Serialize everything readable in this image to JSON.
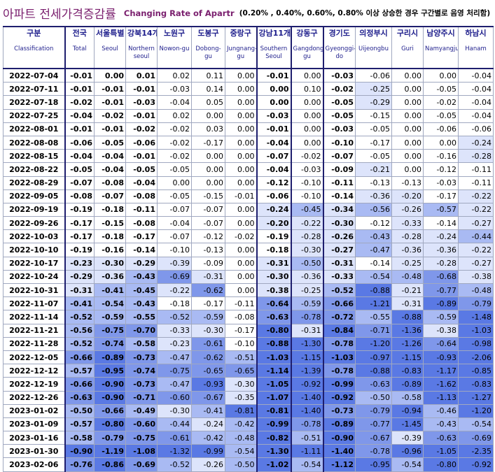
{
  "title": {
    "korean": "아파트 전세가격증감률",
    "english": "Changing Rate of Apartr",
    "note": "(0.20% , 0.40%, 0.60%, 0.80% 이상 상승한 경우 구간별로 음영 처리함)"
  },
  "columns": [
    {
      "k": "구분",
      "e": "Classification"
    },
    {
      "k": "전국",
      "e": "Total"
    },
    {
      "k": "서울특별",
      "e": "Seoul"
    },
    {
      "k": "강북14개",
      "e": "Northern seoul"
    },
    {
      "k": "노원구",
      "e": "Nowon-gu"
    },
    {
      "k": "도봉구",
      "e": "Dobong-gu"
    },
    {
      "k": "중랑구",
      "e": "Jungnang-gu"
    },
    {
      "k": "강남11개",
      "e": "Southern Seoul"
    },
    {
      "k": "강동구",
      "e": "Gangdong-gu"
    },
    {
      "k": "경기도",
      "e": "Gyeonggi-do"
    },
    {
      "k": "의정부시",
      "e": "Uijeongbu"
    },
    {
      "k": "구리시",
      "e": "Guri"
    },
    {
      "k": "남양주시",
      "e": "Namyangju"
    },
    {
      "k": "하남시",
      "e": "Hanam"
    }
  ],
  "shade_colors": {
    "level0": "#ffffff",
    "level1": "#dde4fb",
    "level2": "#a9baf3",
    "level3": "#7f97ea",
    "level4": "#5a79e4"
  },
  "highlight_color": "#e01818",
  "highlight_cell": {
    "row": 30,
    "col": 12
  },
  "rows": [
    [
      "2022-07-04",
      "-0.01",
      "0.00",
      "0.01",
      "0.02",
      "0.11",
      "0.00",
      "-0.01",
      "0.00",
      "-0.03",
      "-0.06",
      "0.00",
      "0.00",
      "-0.04"
    ],
    [
      "2022-07-11",
      "-0.01",
      "-0.01",
      "-0.01",
      "-0.03",
      "0.14",
      "0.00",
      "0.00",
      "0.10",
      "-0.02",
      "-0.25",
      "0.00",
      "-0.05",
      "-0.04"
    ],
    [
      "2022-07-18",
      "-0.02",
      "-0.01",
      "-0.03",
      "-0.04",
      "0.05",
      "0.00",
      "0.00",
      "0.00",
      "-0.05",
      "-0.29",
      "0.00",
      "-0.02",
      "-0.04"
    ],
    [
      "2022-07-25",
      "-0.04",
      "-0.02",
      "-0.01",
      "0.02",
      "0.00",
      "0.00",
      "-0.03",
      "0.00",
      "-0.05",
      "-0.15",
      "0.00",
      "-0.05",
      "-0.04"
    ],
    [
      "2022-08-01",
      "-0.01",
      "-0.01",
      "-0.02",
      "-0.02",
      "0.03",
      "0.00",
      "-0.01",
      "0.00",
      "-0.03",
      "-0.05",
      "0.00",
      "-0.06",
      "-0.06"
    ],
    [
      "2022-08-08",
      "-0.06",
      "-0.05",
      "-0.06",
      "-0.02",
      "-0.17",
      "0.00",
      "-0.04",
      "0.00",
      "-0.10",
      "-0.17",
      "0.00",
      "0.00",
      "-0.24"
    ],
    [
      "2022-08-15",
      "-0.04",
      "-0.04",
      "-0.01",
      "-0.02",
      "0.00",
      "0.00",
      "-0.07",
      "-0.02",
      "-0.07",
      "-0.05",
      "0.00",
      "-0.16",
      "-0.28"
    ],
    [
      "2022-08-22",
      "-0.05",
      "-0.04",
      "-0.05",
      "-0.05",
      "0.00",
      "0.00",
      "-0.04",
      "-0.03",
      "-0.09",
      "-0.21",
      "0.00",
      "-0.12",
      "-0.11"
    ],
    [
      "2022-08-29",
      "-0.07",
      "-0.08",
      "-0.04",
      "0.00",
      "0.00",
      "0.00",
      "-0.12",
      "-0.10",
      "-0.11",
      "-0.13",
      "-0.13",
      "-0.03",
      "-0.11"
    ],
    [
      "2022-09-05",
      "-0.08",
      "-0.07",
      "-0.08",
      "-0.05",
      "-0.15",
      "-0.01",
      "-0.06",
      "-0.10",
      "-0.14",
      "-0.36",
      "-0.20",
      "-0.17",
      "-0.22"
    ],
    [
      "2022-09-19",
      "-0.19",
      "-0.18",
      "-0.11",
      "-0.07",
      "-0.07",
      "0.00",
      "-0.24",
      "-0.45",
      "-0.34",
      "-0.56",
      "-0.26",
      "-0.57",
      "-0.22"
    ],
    [
      "2022-09-26",
      "-0.17",
      "-0.15",
      "-0.08",
      "-0.04",
      "-0.07",
      "0.00",
      "-0.20",
      "-0.22",
      "-0.30",
      "-0.12",
      "-0.33",
      "-0.14",
      "-0.27"
    ],
    [
      "2022-10-03",
      "-0.17",
      "-0.18",
      "-0.17",
      "-0.07",
      "-0.12",
      "-0.02",
      "-0.19",
      "-0.28",
      "-0.26",
      "-0.43",
      "-0.28",
      "-0.24",
      "-0.44"
    ],
    [
      "2022-10-10",
      "-0.19",
      "-0.16",
      "-0.14",
      "-0.10",
      "-0.13",
      "0.00",
      "-0.18",
      "-0.30",
      "-0.27",
      "-0.47",
      "-0.36",
      "-0.36",
      "-0.22"
    ],
    [
      "2022-10-17",
      "-0.23",
      "-0.30",
      "-0.29",
      "-0.39",
      "-0.09",
      "0.00",
      "-0.31",
      "-0.50",
      "-0.31",
      "-0.14",
      "-0.25",
      "-0.28",
      "-0.27"
    ],
    [
      "2022-10-24",
      "-0.29",
      "-0.36",
      "-0.43",
      "-0.69",
      "-0.31",
      "0.00",
      "-0.30",
      "-0.36",
      "-0.33",
      "-0.54",
      "-0.48",
      "-0.68",
      "-0.38"
    ],
    [
      "2022-10-31",
      "-0.31",
      "-0.41",
      "-0.45",
      "-0.22",
      "-0.62",
      "0.00",
      "-0.38",
      "-0.25",
      "-0.52",
      "-0.88",
      "-0.21",
      "-0.77",
      "-0.48"
    ],
    [
      "2022-11-07",
      "-0.41",
      "-0.54",
      "-0.43",
      "-0.18",
      "-0.17",
      "-0.11",
      "-0.64",
      "-0.59",
      "-0.66",
      "-1.21",
      "-0.31",
      "-0.89",
      "-0.79"
    ],
    [
      "2022-11-14",
      "-0.52",
      "-0.59",
      "-0.55",
      "-0.52",
      "-0.59",
      "-0.08",
      "-0.63",
      "-0.78",
      "-0.72",
      "-0.55",
      "-0.88",
      "-0.59",
      "-1.48"
    ],
    [
      "2022-11-21",
      "-0.56",
      "-0.75",
      "-0.70",
      "-0.33",
      "-0.30",
      "-0.17",
      "-0.80",
      "-0.31",
      "-0.84",
      "-0.71",
      "-1.36",
      "-0.38",
      "-1.03"
    ],
    [
      "2022-11-28",
      "-0.52",
      "-0.74",
      "-0.58",
      "-0.23",
      "-0.61",
      "-0.10",
      "-0.88",
      "-1.30",
      "-0.78",
      "-1.20",
      "-1.26",
      "-0.64",
      "-0.98"
    ],
    [
      "2022-12-05",
      "-0.66",
      "-0.89",
      "-0.73",
      "-0.47",
      "-0.62",
      "-0.51",
      "-1.03",
      "-1.15",
      "-1.03",
      "-0.97",
      "-1.15",
      "-0.93",
      "-2.06"
    ],
    [
      "2022-12-12",
      "-0.57",
      "-0.95",
      "-0.74",
      "-0.75",
      "-0.65",
      "-0.65",
      "-1.14",
      "-1.39",
      "-0.78",
      "-0.88",
      "-0.83",
      "-1.17",
      "-0.85"
    ],
    [
      "2022-12-19",
      "-0.66",
      "-0.90",
      "-0.73",
      "-0.47",
      "-0.93",
      "-0.30",
      "-1.05",
      "-0.92",
      "-0.99",
      "-0.63",
      "-0.89",
      "-1.62",
      "-0.83"
    ],
    [
      "2022-12-26",
      "-0.63",
      "-0.90",
      "-0.71",
      "-0.60",
      "-0.67",
      "-0.35",
      "-1.07",
      "-1.40",
      "-0.92",
      "-0.50",
      "-0.58",
      "-1.13",
      "-1.27"
    ],
    [
      "2023-01-02",
      "-0.50",
      "-0.66",
      "-0.49",
      "-0.30",
      "-0.41",
      "-0.81",
      "-0.81",
      "-1.40",
      "-0.73",
      "-0.79",
      "-0.94",
      "-0.46",
      "-1.20"
    ],
    [
      "2023-01-09",
      "-0.57",
      "-0.80",
      "-0.60",
      "-0.44",
      "-0.24",
      "-0.42",
      "-0.99",
      "-0.78",
      "-0.89",
      "-0.77",
      "-1.45",
      "-0.43",
      "-0.54"
    ],
    [
      "2023-01-16",
      "-0.58",
      "-0.79",
      "-0.75",
      "-0.61",
      "-0.42",
      "-0.48",
      "-0.82",
      "-0.51",
      "-0.90",
      "-0.67",
      "-0.39",
      "-0.63",
      "-0.69"
    ],
    [
      "2023-01-30",
      "-0.90",
      "-1.19",
      "-1.08",
      "-1.32",
      "-0.99",
      "-0.54",
      "-1.30",
      "-1.11",
      "-1.40",
      "-0.78",
      "-0.96",
      "-1.05",
      "-2.35"
    ],
    [
      "2023-02-06",
      "-0.76",
      "-0.86",
      "-0.69",
      "-0.52",
      "-0.26",
      "-0.50",
      "-1.02",
      "-0.54",
      "-1.12",
      "-0.95",
      "-0.54",
      "-0.80",
      "-0.92"
    ]
  ]
}
